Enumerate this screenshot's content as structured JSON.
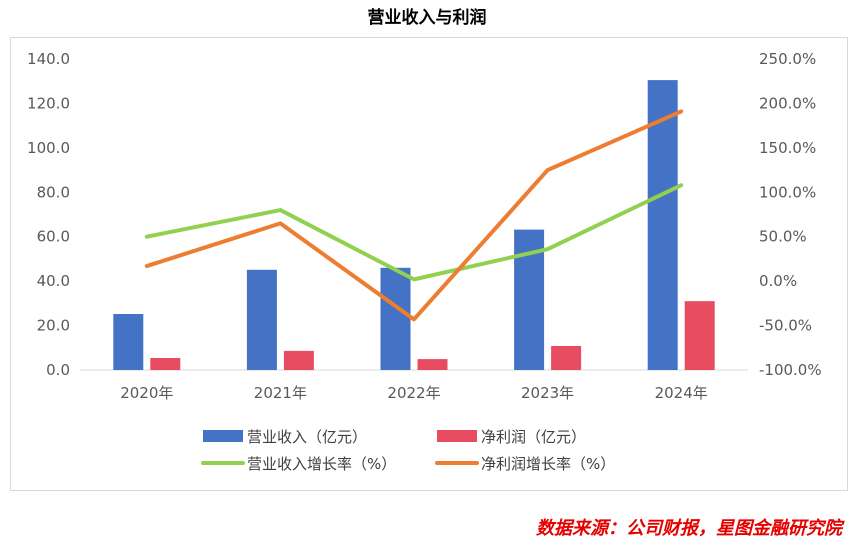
{
  "chart_data": {
    "type": "bar",
    "title": "营业收入与利润",
    "categories": [
      "2020年",
      "2021年",
      "2022年",
      "2023年",
      "2024年"
    ],
    "series": [
      {
        "name": "营业收入（亿元）",
        "type": "bar",
        "axis": "left",
        "color": "#4472c4",
        "values": [
          25.2,
          45.1,
          46.0,
          63.2,
          130.5
        ]
      },
      {
        "name": "净利润（亿元）",
        "type": "bar",
        "axis": "left",
        "color": "#e84c60",
        "values": [
          5.4,
          8.6,
          4.9,
          10.8,
          31.0
        ]
      },
      {
        "name": "营业收入增长率（%）",
        "type": "line",
        "axis": "right",
        "color": "#92d050",
        "values": [
          50,
          80,
          2,
          36,
          108
        ]
      },
      {
        "name": "净利润增长率（%）",
        "type": "line",
        "axis": "right",
        "color": "#ed7d31",
        "values": [
          17,
          65,
          -43,
          125,
          191
        ]
      }
    ],
    "y_left": {
      "min": 0,
      "max": 140,
      "ticks": [
        "0.0",
        "20.0",
        "40.0",
        "60.0",
        "80.0",
        "100.0",
        "120.0",
        "140.0"
      ]
    },
    "y_right": {
      "min": -100,
      "max": 250,
      "ticks": [
        "-100.0%",
        "-50.0%",
        "0.0%",
        "50.0%",
        "100.0%",
        "150.0%",
        "200.0%",
        "250.0%"
      ]
    },
    "grid": false,
    "legend_position": "bottom"
  },
  "source_note": "数据来源：公司财报，星图金融研究院"
}
